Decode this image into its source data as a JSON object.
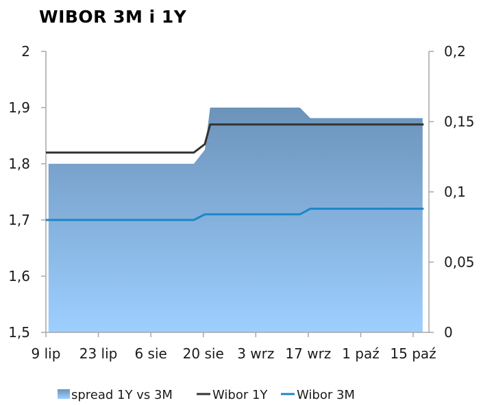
{
  "chart_data": {
    "type": "area",
    "title": "WIBOR 3M i 1Y",
    "x_tick_labels": [
      "9 lip",
      "23 lip",
      "6 sie",
      "20 sie",
      "3 wrz",
      "17 wrz",
      "1 paź",
      "15 paź"
    ],
    "y_left": {
      "range": [
        1.5,
        2.0
      ],
      "ticks": [
        "1,5",
        "1,6",
        "1,7",
        "1,8",
        "1,9",
        "2"
      ]
    },
    "y_right": {
      "range": [
        0,
        0.2
      ],
      "ticks": [
        "0",
        "0,05",
        "0,1",
        "0,15",
        "0,2"
      ]
    },
    "x_range": [
      0,
      73
    ],
    "grid": false,
    "legend_position": "bottom",
    "series": [
      {
        "name": "spread 1Y vs 3M",
        "axis": "right",
        "kind": "area",
        "color": "#7aa3c9",
        "points": [
          [
            0.5,
            0.12
          ],
          [
            28.2,
            0.12
          ],
          [
            30.3,
            0.13
          ],
          [
            31.3,
            0.16
          ],
          [
            48.4,
            0.16
          ],
          [
            50.4,
            0.1525
          ],
          [
            71.8,
            0.1525
          ]
        ]
      },
      {
        "name": "Wibor 1Y",
        "axis": "left",
        "kind": "line",
        "color": "#333333",
        "points": [
          [
            0,
            1.82
          ],
          [
            28.2,
            1.82
          ],
          [
            30.3,
            1.835
          ],
          [
            31.3,
            1.87
          ],
          [
            72,
            1.87
          ]
        ]
      },
      {
        "name": "Wibor 3M",
        "axis": "left",
        "kind": "line",
        "color": "#1b86c6",
        "points": [
          [
            0,
            1.7
          ],
          [
            28.2,
            1.7
          ],
          [
            30.3,
            1.71
          ],
          [
            48.4,
            1.71
          ],
          [
            50.4,
            1.72
          ],
          [
            72,
            1.72
          ]
        ]
      }
    ]
  }
}
